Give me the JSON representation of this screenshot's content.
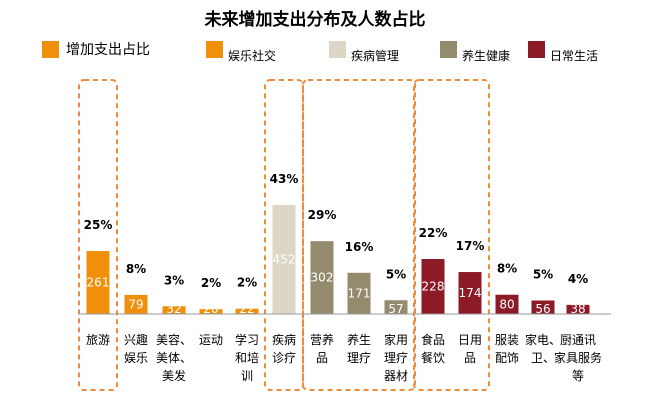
{
  "chart_data": {
    "type": "bar",
    "title": "未来增加支出分布及人数占比",
    "legend": [
      {
        "name": "增加支出占比",
        "color": "#F0900A"
      },
      {
        "name": "娱乐社交",
        "color": "#F0900A"
      },
      {
        "name": "疾病管理",
        "color": "#DBD6C6"
      },
      {
        "name": "养生健康",
        "color": "#948B6E"
      },
      {
        "name": "日常生活",
        "color": "#8C1A27"
      }
    ],
    "legend_placement": "top",
    "categories": [
      {
        "lines": [
          "旅游"
        ],
        "group": "娱乐社交",
        "value": 261,
        "percent": "25%"
      },
      {
        "lines": [
          "兴趣",
          "娱乐"
        ],
        "group": "娱乐社交",
        "value": 79,
        "percent": "8%"
      },
      {
        "lines": [
          "美容、",
          "美体、",
          "美发"
        ],
        "group": "娱乐社交",
        "value": 32,
        "percent": "3%"
      },
      {
        "lines": [
          "运动"
        ],
        "group": "娱乐社交",
        "value": 20,
        "percent": "2%"
      },
      {
        "lines": [
          "学习",
          "和培",
          "训"
        ],
        "group": "娱乐社交",
        "value": 22,
        "percent": "2%"
      },
      {
        "lines": [
          "疾病",
          "诊疗"
        ],
        "group": "疾病管理",
        "value": 452,
        "percent": "43%"
      },
      {
        "lines": [
          "营养",
          "品"
        ],
        "group": "养生健康",
        "value": 302,
        "percent": "29%"
      },
      {
        "lines": [
          "养生",
          "理疗"
        ],
        "group": "养生健康",
        "value": 171,
        "percent": "16%"
      },
      {
        "lines": [
          "家用",
          "理疗",
          "器材"
        ],
        "group": "养生健康",
        "value": 57,
        "percent": "5%"
      },
      {
        "lines": [
          "食品",
          "餐饮"
        ],
        "group": "日常生活",
        "value": 228,
        "percent": "22%"
      },
      {
        "lines": [
          "日用",
          "品"
        ],
        "group": "日常生活",
        "value": 174,
        "percent": "17%"
      },
      {
        "lines": [
          "服装",
          "配饰"
        ],
        "group": "日常生活",
        "value": 80,
        "percent": "8%"
      },
      {
        "lines": [
          "家电、",
          "卫、"
        ],
        "group": "日常生活",
        "value": 56,
        "percent": "5%"
      },
      {
        "lines": [
          "厨通讯",
          "家具服务",
          "等"
        ],
        "group": "日常生活",
        "value": 38,
        "percent": "4%"
      }
    ],
    "ylim": [
      0,
      452
    ],
    "grid": false
  }
}
